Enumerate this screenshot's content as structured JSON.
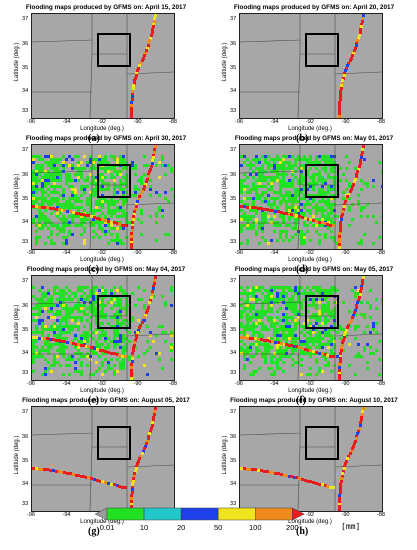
{
  "panels": [
    {
      "title": "Flooding maps produced by GFMS on: April 15, 2017",
      "label": "(a)",
      "flood": "low"
    },
    {
      "title": "Flooding maps produced by GFMS on: April 20, 2017",
      "label": "(b)",
      "flood": "low"
    },
    {
      "title": "Flooding maps produced by GFMS on: April 30, 2017",
      "label": "(c)",
      "flood": "high"
    },
    {
      "title": "Flooding maps produced by GFMS on: May 01, 2017",
      "label": "(d)",
      "flood": "high"
    },
    {
      "title": "Flooding maps produced by GFMS on: May 04, 2017",
      "label": "(e)",
      "flood": "high"
    },
    {
      "title": "Flooding maps produced by GFMS on: May 05, 2017",
      "label": "(f)",
      "flood": "high"
    },
    {
      "title": "Flooding maps produced by GFMS on: August 05, 2017",
      "label": "(g)",
      "flood": "low"
    },
    {
      "title": "Flooding maps produced by GFMS on: August 10, 2017",
      "label": "(h)",
      "flood": "low"
    }
  ],
  "axes": {
    "xlabel": "Longitude (deg.)",
    "ylabel": "Latitude (deg.)",
    "xticks": [
      "-96",
      "-94",
      "-92",
      "-90",
      "-88"
    ],
    "yticks": [
      "37",
      "36",
      "35",
      "34",
      "33"
    ]
  },
  "colorbar": {
    "ticks": [
      "0.01",
      "10",
      "20",
      "50",
      "100",
      "200"
    ],
    "unit": "[mm]",
    "colors": [
      "#9a9a9a",
      "#22e022",
      "#22c8c8",
      "#1f3fe8",
      "#f0e41c",
      "#f08a1c",
      "#e81c1c"
    ]
  },
  "colors": {
    "land": "#a7a7a7",
    "border": "#4a4a4a",
    "study_box": "#000000"
  }
}
